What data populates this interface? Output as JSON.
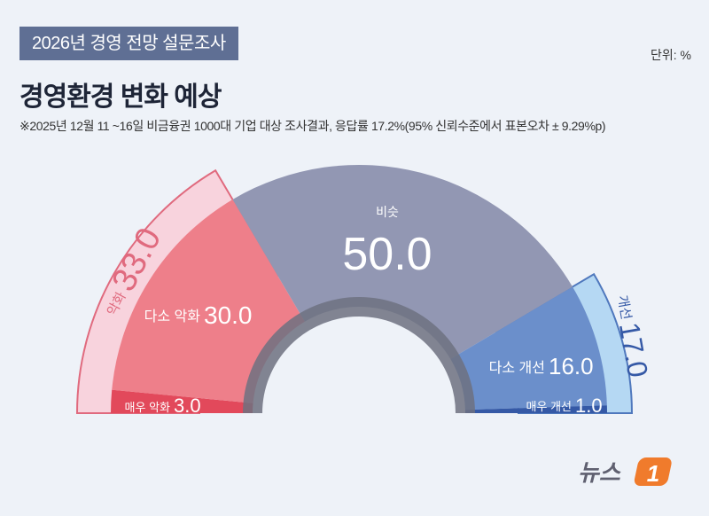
{
  "header": {
    "tag": "2026년 경영 전망 설문조사",
    "title": "경영환경 변화 예상",
    "note": "※2025년 12월 11 ~16일 비금융권 1000대 기업 대상 조사결과, 응답률 17.2%(95% 신뢰수준에서 표본오차 ± 9.29%p)",
    "unit": "단위: %"
  },
  "logo": {
    "text": "뉴스",
    "badge": "1"
  },
  "colors": {
    "worse_outer": "#f8d3dd",
    "worse_outer_edge": "#e06a7e",
    "slightly_worse": "#ee7f8a",
    "much_worse": "#e2495b",
    "similar": "#9297b3",
    "slightly_better": "#6b8fcb",
    "much_better": "#3559a6",
    "better_outer": "#b5d8f3",
    "better_outer_edge": "#4f78bd",
    "inner_arc": "#6d7180"
  },
  "chart_data": {
    "type": "pie",
    "subtype": "semicircle-gauge",
    "categories": [
      {
        "key": "much_worse",
        "label": "매우 악화",
        "value": 3.0
      },
      {
        "key": "slightly_worse",
        "label": "다소 악화",
        "value": 30.0
      },
      {
        "key": "similar",
        "label": "비슷",
        "value": 50.0
      },
      {
        "key": "slightly_better",
        "label": "다소 개선",
        "value": 16.0
      },
      {
        "key": "much_better",
        "label": "매우 개선",
        "value": 1.0
      }
    ],
    "groups": [
      {
        "key": "worse",
        "label": "악화",
        "value": 33.0
      },
      {
        "key": "better",
        "label": "개선",
        "value": 17.0
      }
    ]
  }
}
